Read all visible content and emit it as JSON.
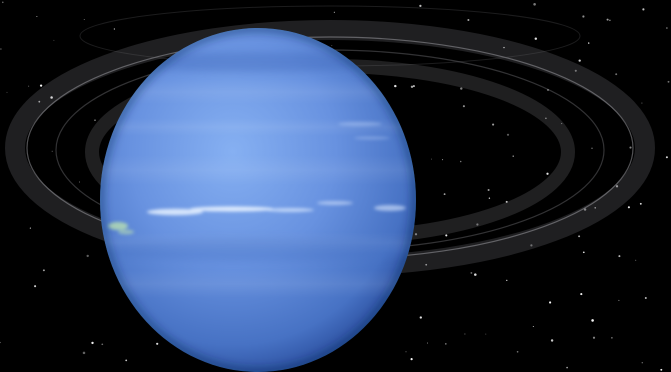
{
  "scene": {
    "subject": "planet-with-rings",
    "colors": {
      "space": "#000000",
      "planet_light": "#7fa9ec",
      "planet_mid": "#5b86d6",
      "planet_dark": "#2a4e9e",
      "planet_edge": "#0f2456",
      "cloud_streak": "#e6f1ff",
      "cloud_green": "#bfe6b0",
      "ring": "#8f8f96",
      "star": "#ffffff"
    }
  }
}
